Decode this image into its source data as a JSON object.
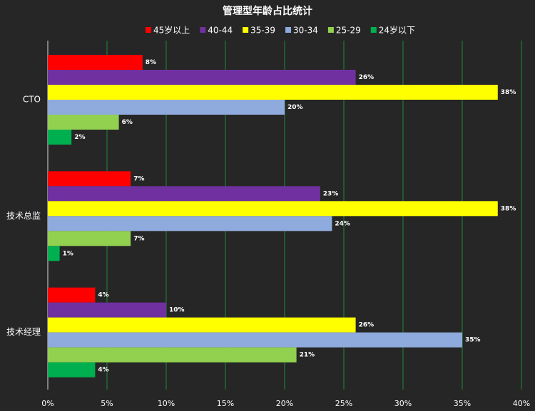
{
  "chart_data": {
    "type": "hbar",
    "title": "管理型年龄占比统计",
    "categories": [
      "CTO",
      "技术总监",
      "技术经理"
    ],
    "series": [
      {
        "name": "45岁以上",
        "color": "#ff0000",
        "values": [
          8,
          7,
          4
        ],
        "value_labels": [
          "8%",
          "7%",
          "4%"
        ]
      },
      {
        "name": "40-44",
        "color": "#7030a0",
        "values": [
          26,
          23,
          10
        ],
        "value_labels": [
          "26%",
          "23%",
          "10%"
        ]
      },
      {
        "name": "35-39",
        "color": "#ffff00",
        "values": [
          38,
          38,
          26
        ],
        "value_labels": [
          "38%",
          "38%",
          "26%"
        ]
      },
      {
        "name": "30-34",
        "color": "#8faadc",
        "values": [
          20,
          24,
          35
        ],
        "value_labels": [
          "20%",
          "24%",
          "35%"
        ]
      },
      {
        "name": "25-29",
        "color": "#92d050",
        "values": [
          6,
          7,
          21
        ],
        "value_labels": [
          "6%",
          "7%",
          "21%"
        ]
      },
      {
        "name": "24岁以下",
        "color": "#00b050",
        "values": [
          2,
          1,
          4
        ],
        "value_labels": [
          "2%",
          "1%",
          "4%"
        ]
      }
    ],
    "xlim": [
      0,
      40
    ],
    "xticks": [
      {
        "value": 0,
        "label": "0%"
      },
      {
        "value": 5,
        "label": "5%"
      },
      {
        "value": 10,
        "label": "10%"
      },
      {
        "value": 15,
        "label": "15%"
      },
      {
        "value": 20,
        "label": "20%"
      },
      {
        "value": 25,
        "label": "25%"
      },
      {
        "value": 30,
        "label": "30%"
      },
      {
        "value": 35,
        "label": "35%"
      },
      {
        "value": 40,
        "label": "40%"
      }
    ],
    "grid": true
  }
}
